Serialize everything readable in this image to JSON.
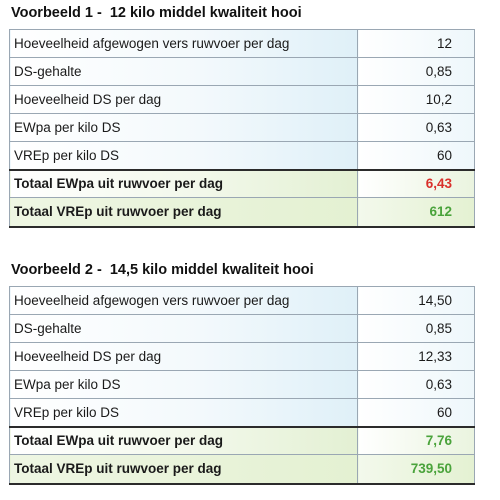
{
  "colors": {
    "highlight_red": "#d9302b",
    "highlight_green": "#4aa33b",
    "cell_tint_blue": "#dff0f8",
    "cell_tint_green": "#e3f0d3"
  },
  "examples": [
    {
      "title": "Voorbeeld 1 -  12 kilo middel kwaliteit hooi",
      "rows": [
        {
          "label": "Hoeveelheid afgewogen vers ruwvoer per dag",
          "value": "12"
        },
        {
          "label": "DS-gehalte",
          "value": "0,85"
        },
        {
          "label": "Hoeveelheid DS per dag",
          "value": "10,2"
        },
        {
          "label": "EWpa per kilo DS",
          "value": "0,63"
        },
        {
          "label": "VREp per kilo DS",
          "value": "60"
        }
      ],
      "totals": [
        {
          "label": "Totaal EWpa uit ruwvoer per dag",
          "value": "6,43",
          "color": "red"
        },
        {
          "label": "Totaal VREp uit ruwvoer per dag",
          "value": "612",
          "color": "green"
        }
      ]
    },
    {
      "title": "Voorbeeld 2 -  14,5 kilo middel kwaliteit hooi",
      "rows": [
        {
          "label": "Hoeveelheid afgewogen vers ruwvoer per dag",
          "value": "14,50"
        },
        {
          "label": "DS-gehalte",
          "value": "0,85"
        },
        {
          "label": "Hoeveelheid DS per dag",
          "value": "12,33"
        },
        {
          "label": "EWpa per kilo DS",
          "value": "0,63"
        },
        {
          "label": "VREp per kilo DS",
          "value": "60"
        }
      ],
      "totals": [
        {
          "label": "Totaal EWpa uit ruwvoer per dag",
          "value": "7,76",
          "color": "green"
        },
        {
          "label": "Totaal VREp uit ruwvoer per dag",
          "value": "739,50",
          "color": "green"
        }
      ]
    }
  ]
}
